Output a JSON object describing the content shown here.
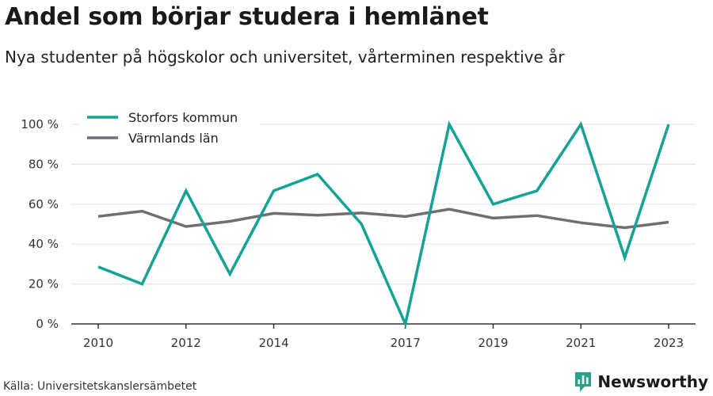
{
  "header": {
    "title": "Andel som börjar studera i hemlänet",
    "subtitle": "Nya studenter på högskolor och universitet, vårterminen respektive år"
  },
  "footer": {
    "source": "Källa: Universitetskanslersämbetet",
    "brand": "Newsworthy"
  },
  "colors": {
    "storfors": "#13a396",
    "varmland": "#6e6e73",
    "grid": "#e6e6e6",
    "brand": "#2aa38c"
  },
  "chart_data": {
    "type": "line",
    "title": "Andel som börjar studera i hemlänet",
    "subtitle": "Nya studenter på högskolor och universitet, vårterminen respektive år",
    "x": [
      2010,
      2011,
      2012,
      2013,
      2014,
      2015,
      2016,
      2017,
      2018,
      2019,
      2020,
      2021,
      2022,
      2023
    ],
    "x_tick_labels": [
      "2010",
      "2012",
      "2014",
      "2017",
      "2019",
      "2021",
      "2023"
    ],
    "x_ticks": [
      2010,
      2012,
      2014,
      2017,
      2019,
      2021,
      2023
    ],
    "y_ticks": [
      0,
      20,
      40,
      60,
      80,
      100
    ],
    "y_tick_labels": [
      "0 %",
      "20 %",
      "40 %",
      "60 %",
      "80 %",
      "100 %"
    ],
    "ylim": [
      0,
      100
    ],
    "xlabel": "",
    "ylabel": "",
    "grid": true,
    "legend_position": "top-left",
    "series": [
      {
        "name": "Storfors kommun",
        "color": "#13a396",
        "values": [
          28.6,
          20,
          66.7,
          25,
          66.7,
          75,
          50,
          0,
          100,
          60,
          66.7,
          100,
          33.3,
          100
        ]
      },
      {
        "name": "Värmlands län",
        "color": "#6e6e73",
        "values": [
          53.9,
          56.5,
          48.8,
          51.4,
          55.4,
          54.5,
          55.6,
          53.8,
          57.5,
          53.0,
          54.3,
          50.7,
          48.2,
          51.0
        ]
      }
    ]
  }
}
